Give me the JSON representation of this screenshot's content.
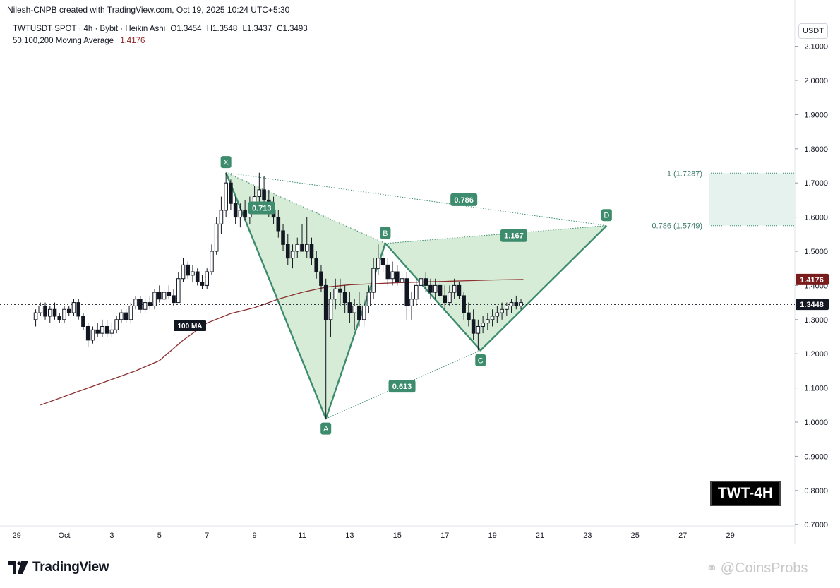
{
  "header": {
    "credit": "Nilesh-CNPB created with TradingView.com, Oct 19, 2025 10:24 UTC+5:30",
    "symbol_line": "TWTUSDT SPOT · 4h · Bybit · Heikin Ashi",
    "ohlc": {
      "open": "O1.3454",
      "high": "H1.3548",
      "low": "L1.3437",
      "close": "C1.3493"
    },
    "ma_label": "50,100,200 Moving Average",
    "ma_value": "1.4176"
  },
  "currency_button": "USDT",
  "tag": "TWT-4H",
  "brand": "TradingView",
  "watermark": "@CoinsProbs",
  "colors": {
    "pattern_fill": "#c8e6c9",
    "pattern_line": "#3d8c6e",
    "label_bg": "#3d8c6e",
    "ma_line": "#8b2f2f",
    "bull_candle": "#ffffff",
    "bear_candle": "#131722",
    "price_line": "#131722"
  },
  "chart_data": {
    "type": "candlestick",
    "y_axis": {
      "min": 0.7,
      "max": 2.1,
      "ticks": [
        "0.7000",
        "0.8000",
        "0.9000",
        "1.0000",
        "1.1000",
        "1.2000",
        "1.3000",
        "1.4000",
        "1.5000",
        "1.6000",
        "1.7000",
        "1.8000",
        "1.9000",
        "2.0000",
        "2.1000"
      ]
    },
    "x_axis": {
      "ticks": [
        "29",
        "Oct",
        "3",
        "5",
        "7",
        "9",
        "11",
        "13",
        "15",
        "17",
        "19",
        "21",
        "23",
        "25",
        "27",
        "29"
      ]
    },
    "price_badges": [
      {
        "value": "1.4176",
        "kind": "ma"
      },
      {
        "value": "1.3448",
        "kind": "last"
      }
    ],
    "pattern_points": [
      {
        "label": "X",
        "day": 6.8,
        "price": 1.73
      },
      {
        "label": "A",
        "day": 11.0,
        "price": 1.01
      },
      {
        "label": "B",
        "day": 13.5,
        "price": 1.523
      },
      {
        "label": "C",
        "day": 17.5,
        "price": 1.21
      },
      {
        "label": "D",
        "day": 22.8,
        "price": 1.575
      }
    ],
    "ratio_labels": [
      {
        "text": "0.713",
        "day": 8.3,
        "price": 1.627
      },
      {
        "text": "0.786",
        "day": 16.8,
        "price": 1.651
      },
      {
        "text": "1.167",
        "day": 18.9,
        "price": 1.546
      },
      {
        "text": "0.613",
        "day": 14.2,
        "price": 1.105
      }
    ],
    "target_zone": {
      "high_label": "1 (1.7287)",
      "high": 1.7287,
      "low_label": "0.786 (1.5749)",
      "low": 1.5749
    },
    "ma_label": "100 MA",
    "ma_series": [
      [
        -1,
        1.05
      ],
      [
        1,
        1.1
      ],
      [
        3,
        1.15
      ],
      [
        4,
        1.18
      ],
      [
        5,
        1.24
      ],
      [
        6,
        1.29
      ],
      [
        7,
        1.318
      ],
      [
        8,
        1.335
      ],
      [
        9,
        1.36
      ],
      [
        10,
        1.38
      ],
      [
        11,
        1.395
      ],
      [
        12,
        1.402
      ],
      [
        13,
        1.405
      ],
      [
        14,
        1.408
      ],
      [
        15,
        1.41
      ],
      [
        16,
        1.412
      ],
      [
        17,
        1.414
      ],
      [
        18,
        1.416
      ],
      [
        19.3,
        1.4176
      ]
    ],
    "candles": [
      [
        -1.2,
        1.3,
        1.33,
        1.28,
        1.32
      ],
      [
        -1.0,
        1.32,
        1.35,
        1.31,
        1.34
      ],
      [
        -0.8,
        1.34,
        1.35,
        1.3,
        1.31
      ],
      [
        -0.6,
        1.31,
        1.34,
        1.29,
        1.33
      ],
      [
        -0.4,
        1.33,
        1.35,
        1.3,
        1.31
      ],
      [
        -0.2,
        1.31,
        1.32,
        1.29,
        1.3
      ],
      [
        0.0,
        1.3,
        1.34,
        1.29,
        1.33
      ],
      [
        0.2,
        1.33,
        1.34,
        1.31,
        1.32
      ],
      [
        0.4,
        1.32,
        1.36,
        1.31,
        1.35
      ],
      [
        0.6,
        1.35,
        1.36,
        1.3,
        1.31
      ],
      [
        0.8,
        1.31,
        1.32,
        1.27,
        1.28
      ],
      [
        1.0,
        1.28,
        1.29,
        1.22,
        1.24
      ],
      [
        1.2,
        1.24,
        1.28,
        1.23,
        1.27
      ],
      [
        1.4,
        1.27,
        1.29,
        1.25,
        1.26
      ],
      [
        1.6,
        1.26,
        1.3,
        1.25,
        1.28
      ],
      [
        1.8,
        1.28,
        1.3,
        1.25,
        1.26
      ],
      [
        2.0,
        1.26,
        1.29,
        1.25,
        1.27
      ],
      [
        2.2,
        1.27,
        1.31,
        1.26,
        1.3
      ],
      [
        2.4,
        1.3,
        1.33,
        1.29,
        1.32
      ],
      [
        2.6,
        1.32,
        1.33,
        1.29,
        1.3
      ],
      [
        2.8,
        1.3,
        1.35,
        1.29,
        1.34
      ],
      [
        3.0,
        1.34,
        1.37,
        1.33,
        1.36
      ],
      [
        3.2,
        1.36,
        1.37,
        1.32,
        1.33
      ],
      [
        3.4,
        1.33,
        1.36,
        1.32,
        1.35
      ],
      [
        3.6,
        1.35,
        1.37,
        1.33,
        1.34
      ],
      [
        3.8,
        1.34,
        1.39,
        1.33,
        1.38
      ],
      [
        4.0,
        1.38,
        1.4,
        1.35,
        1.36
      ],
      [
        4.2,
        1.36,
        1.39,
        1.35,
        1.38
      ],
      [
        4.4,
        1.38,
        1.4,
        1.36,
        1.37
      ],
      [
        4.6,
        1.37,
        1.39,
        1.34,
        1.35
      ],
      [
        4.8,
        1.35,
        1.44,
        1.35,
        1.42
      ],
      [
        5.0,
        1.42,
        1.48,
        1.41,
        1.46
      ],
      [
        5.2,
        1.46,
        1.47,
        1.42,
        1.43
      ],
      [
        5.4,
        1.43,
        1.46,
        1.41,
        1.44
      ],
      [
        5.6,
        1.44,
        1.45,
        1.4,
        1.41
      ],
      [
        5.8,
        1.41,
        1.43,
        1.39,
        1.4
      ],
      [
        6.0,
        1.4,
        1.45,
        1.39,
        1.44
      ],
      [
        6.2,
        1.44,
        1.52,
        1.43,
        1.5
      ],
      [
        6.4,
        1.5,
        1.6,
        1.49,
        1.58
      ],
      [
        6.6,
        1.58,
        1.66,
        1.55,
        1.62
      ],
      [
        6.8,
        1.62,
        1.73,
        1.6,
        1.7
      ],
      [
        7.0,
        1.7,
        1.71,
        1.62,
        1.64
      ],
      [
        7.2,
        1.64,
        1.66,
        1.58,
        1.6
      ],
      [
        7.4,
        1.6,
        1.64,
        1.57,
        1.62
      ],
      [
        7.6,
        1.62,
        1.65,
        1.59,
        1.6
      ],
      [
        7.8,
        1.6,
        1.66,
        1.58,
        1.64
      ],
      [
        8.0,
        1.64,
        1.69,
        1.62,
        1.66
      ],
      [
        8.2,
        1.66,
        1.73,
        1.63,
        1.68
      ],
      [
        8.4,
        1.68,
        1.72,
        1.63,
        1.65
      ],
      [
        8.6,
        1.65,
        1.68,
        1.6,
        1.62
      ],
      [
        8.8,
        1.62,
        1.66,
        1.58,
        1.6
      ],
      [
        9.0,
        1.6,
        1.62,
        1.54,
        1.56
      ],
      [
        9.2,
        1.56,
        1.58,
        1.5,
        1.52
      ],
      [
        9.4,
        1.52,
        1.55,
        1.46,
        1.48
      ],
      [
        9.6,
        1.48,
        1.52,
        1.45,
        1.5
      ],
      [
        9.8,
        1.5,
        1.54,
        1.48,
        1.52
      ],
      [
        10.0,
        1.52,
        1.58,
        1.5,
        1.5
      ],
      [
        10.2,
        1.5,
        1.6,
        1.48,
        1.52
      ],
      [
        10.4,
        1.52,
        1.54,
        1.46,
        1.48
      ],
      [
        10.6,
        1.48,
        1.5,
        1.42,
        1.44
      ],
      [
        10.8,
        1.44,
        1.46,
        1.38,
        1.4
      ],
      [
        11.0,
        1.4,
        1.42,
        1.01,
        1.3
      ],
      [
        11.2,
        1.3,
        1.38,
        1.25,
        1.36
      ],
      [
        11.4,
        1.36,
        1.42,
        1.33,
        1.39
      ],
      [
        11.6,
        1.39,
        1.42,
        1.34,
        1.38
      ],
      [
        11.8,
        1.38,
        1.4,
        1.32,
        1.35
      ],
      [
        12.0,
        1.35,
        1.38,
        1.29,
        1.32
      ],
      [
        12.2,
        1.32,
        1.36,
        1.27,
        1.34
      ],
      [
        12.4,
        1.34,
        1.38,
        1.28,
        1.3
      ],
      [
        12.6,
        1.3,
        1.36,
        1.28,
        1.34
      ],
      [
        12.8,
        1.34,
        1.4,
        1.32,
        1.38
      ],
      [
        13.0,
        1.38,
        1.48,
        1.36,
        1.45
      ],
      [
        13.2,
        1.45,
        1.52,
        1.43,
        1.48
      ],
      [
        13.4,
        1.48,
        1.52,
        1.44,
        1.46
      ],
      [
        13.6,
        1.46,
        1.48,
        1.4,
        1.42
      ],
      [
        13.8,
        1.42,
        1.47,
        1.4,
        1.44
      ],
      [
        14.0,
        1.44,
        1.46,
        1.4,
        1.41
      ],
      [
        14.2,
        1.41,
        1.44,
        1.38,
        1.42
      ],
      [
        14.4,
        1.42,
        1.44,
        1.3,
        1.34
      ],
      [
        14.6,
        1.34,
        1.38,
        1.3,
        1.36
      ],
      [
        14.8,
        1.36,
        1.42,
        1.34,
        1.4
      ],
      [
        15.0,
        1.4,
        1.44,
        1.38,
        1.42
      ],
      [
        15.2,
        1.42,
        1.44,
        1.38,
        1.4
      ],
      [
        15.4,
        1.4,
        1.42,
        1.36,
        1.38
      ],
      [
        15.6,
        1.38,
        1.42,
        1.36,
        1.4
      ],
      [
        15.8,
        1.4,
        1.42,
        1.36,
        1.37
      ],
      [
        16.0,
        1.37,
        1.4,
        1.33,
        1.35
      ],
      [
        16.2,
        1.35,
        1.4,
        1.34,
        1.38
      ],
      [
        16.4,
        1.38,
        1.42,
        1.36,
        1.4
      ],
      [
        16.6,
        1.4,
        1.41,
        1.36,
        1.37
      ],
      [
        16.8,
        1.37,
        1.38,
        1.3,
        1.32
      ],
      [
        17.0,
        1.32,
        1.35,
        1.28,
        1.3
      ],
      [
        17.2,
        1.3,
        1.33,
        1.24,
        1.26
      ],
      [
        17.4,
        1.26,
        1.3,
        1.21,
        1.28
      ],
      [
        17.6,
        1.28,
        1.31,
        1.26,
        1.29
      ],
      [
        17.8,
        1.29,
        1.32,
        1.27,
        1.3
      ],
      [
        18.0,
        1.3,
        1.33,
        1.28,
        1.31
      ],
      [
        18.2,
        1.31,
        1.34,
        1.29,
        1.32
      ],
      [
        18.4,
        1.32,
        1.35,
        1.3,
        1.33
      ],
      [
        18.6,
        1.33,
        1.35,
        1.31,
        1.34
      ],
      [
        18.8,
        1.34,
        1.36,
        1.32,
        1.35
      ],
      [
        19.0,
        1.35,
        1.37,
        1.33,
        1.34
      ],
      [
        19.2,
        1.34,
        1.36,
        1.33,
        1.35
      ]
    ]
  }
}
